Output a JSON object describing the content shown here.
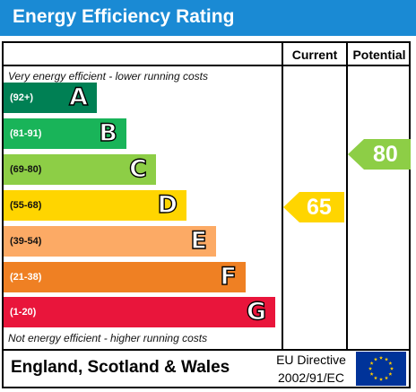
{
  "title": "Energy Efficiency Rating",
  "columns": {
    "current": "Current",
    "potential": "Potential"
  },
  "notes": {
    "top": "Very energy efficient - lower running costs",
    "bottom": "Not energy efficient - higher running costs"
  },
  "bands": [
    {
      "range": "(92+)",
      "letter": "A",
      "color": "#008054"
    },
    {
      "range": "(81-91)",
      "letter": "B",
      "color": "#19b459"
    },
    {
      "range": "(69-80)",
      "letter": "C",
      "color": "#8dce46"
    },
    {
      "range": "(55-68)",
      "letter": "D",
      "color": "#ffd500"
    },
    {
      "range": "(39-54)",
      "letter": "E",
      "color": "#fcaa65"
    },
    {
      "range": "(21-38)",
      "letter": "F",
      "color": "#ef8023"
    },
    {
      "range": "(1-20)",
      "letter": "G",
      "color": "#e9153b"
    }
  ],
  "chart_data": {
    "type": "bar",
    "title": "Energy Efficiency Rating",
    "categories": [
      "A",
      "B",
      "C",
      "D",
      "E",
      "F",
      "G"
    ],
    "ranges": [
      "(92+)",
      "(81-91)",
      "(69-80)",
      "(55-68)",
      "(39-54)",
      "(21-38)",
      "(1-20)"
    ],
    "current": {
      "value": 65,
      "band": "D",
      "color": "#ffd500"
    },
    "potential": {
      "value": 80,
      "band": "C",
      "color": "#8dce46"
    }
  },
  "footer": {
    "country": "England, Scotland & Wales",
    "directive_line1": "EU Directive",
    "directive_line2": "2002/91/EC"
  }
}
